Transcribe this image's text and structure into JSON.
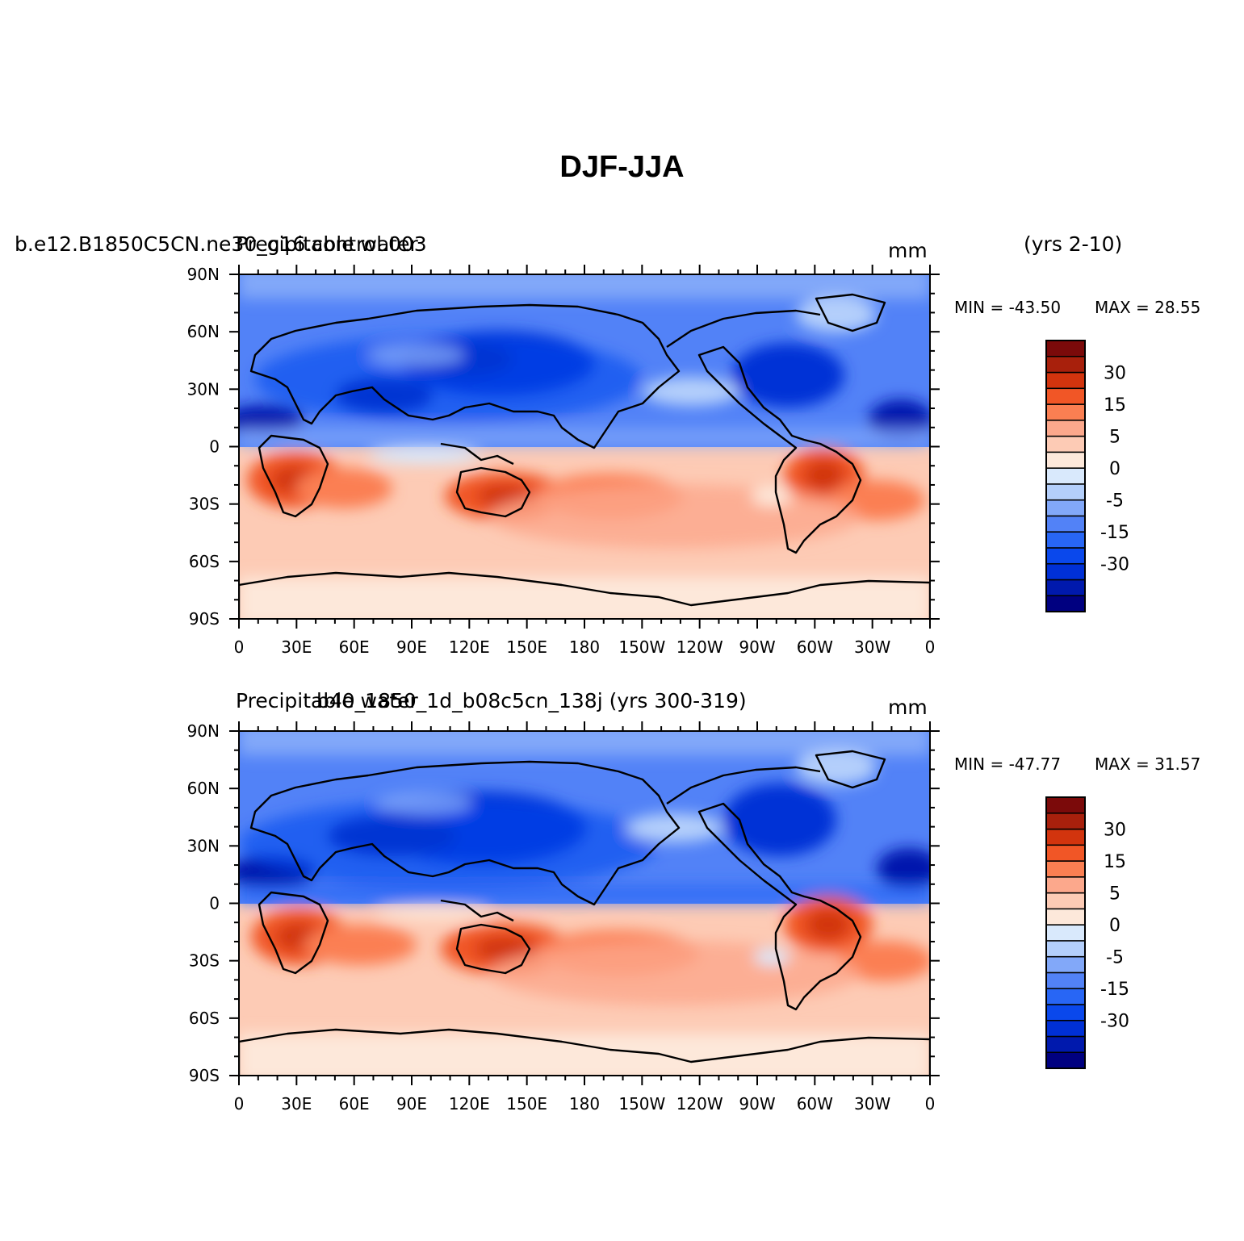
{
  "title": "DJF-JJA",
  "colors": {
    "levels": [
      "#000080",
      "#0019ad",
      "#0030d6",
      "#0a48ec",
      "#2866f5",
      "#5282f7",
      "#82a8f9",
      "#b4cffb",
      "#d9e9fc",
      "#fde8da",
      "#fdcbb5",
      "#fca88c",
      "#fb7f52",
      "#f15626",
      "#d2340e",
      "#a8200c",
      "#7b0a0a"
    ],
    "land_outline": "#000000"
  },
  "panels": [
    {
      "left_label": "b.e12.B1850C5CN.ne30_g16.control.003",
      "center_label": "Precipitable water",
      "right_label": "(yrs 2-10)",
      "units": "mm",
      "min_label": "MIN = -43.50",
      "max_label": "MAX =  28.55"
    },
    {
      "left_label": "Precipitable water",
      "center_label": "b40_1850_1d_b08c5cn_138j (yrs 300-319)",
      "right_label": "",
      "units": "mm",
      "min_label": "MIN = -47.77",
      "max_label": "MAX =  31.57"
    }
  ],
  "axes": {
    "lat_ticks": [
      "90N",
      "60N",
      "30N",
      "0",
      "30S",
      "60S",
      "90S"
    ],
    "lon_ticks": [
      "0",
      "30E",
      "60E",
      "90E",
      "120E",
      "150E",
      "180",
      "150W",
      "120W",
      "90W",
      "60W",
      "30W",
      "0"
    ]
  },
  "colorbar": {
    "labels": [
      "30",
      "15",
      "5",
      "0",
      "-5",
      "-15",
      "-30"
    ]
  }
}
